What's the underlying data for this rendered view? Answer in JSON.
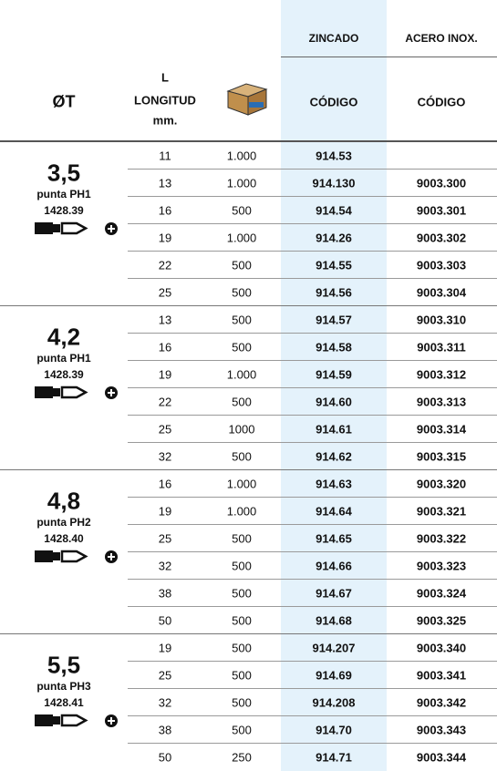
{
  "header": {
    "zincado": "ZINCADO",
    "acero": "ACERO INOX.",
    "diameter": "ØT",
    "length_l": "L",
    "length_word": "LONGITUD",
    "length_unit": "mm.",
    "code_zincado": "CÓDIGO",
    "code_acero": "CÓDIGO"
  },
  "groups": [
    {
      "size": "3,5",
      "tip": "punta PH1",
      "ref": "1428.39",
      "rows": [
        [
          "11",
          "1.000",
          "914.53",
          null
        ],
        [
          "13",
          "1.000",
          "914.130",
          "9003.300"
        ],
        [
          "16",
          "500",
          "914.54",
          "9003.301"
        ],
        [
          "19",
          "1.000",
          "914.26",
          "9003.302"
        ],
        [
          "22",
          "500",
          "914.55",
          "9003.303"
        ],
        [
          "25",
          "500",
          "914.56",
          "9003.304"
        ]
      ]
    },
    {
      "size": "4,2",
      "tip": "punta PH1",
      "ref": "1428.39",
      "rows": [
        [
          "13",
          "500",
          "914.57",
          "9003.310"
        ],
        [
          "16",
          "500",
          "914.58",
          "9003.311"
        ],
        [
          "19",
          "1.000",
          "914.59",
          "9003.312"
        ],
        [
          "22",
          "500",
          "914.60",
          "9003.313"
        ],
        [
          "25",
          "1000",
          "914.61",
          "9003.314"
        ],
        [
          "32",
          "500",
          "914.62",
          "9003.315"
        ]
      ]
    },
    {
      "size": "4,8",
      "tip": "punta PH2",
      "ref": "1428.40",
      "rows": [
        [
          "16",
          "1.000",
          "914.63",
          "9003.320"
        ],
        [
          "19",
          "1.000",
          "914.64",
          "9003.321"
        ],
        [
          "25",
          "500",
          "914.65",
          "9003.322"
        ],
        [
          "32",
          "500",
          "914.66",
          "9003.323"
        ],
        [
          "38",
          "500",
          "914.67",
          "9003.324"
        ],
        [
          "50",
          "500",
          "914.68",
          "9003.325"
        ]
      ]
    },
    {
      "size": "5,5",
      "tip": "punta PH3",
      "ref": "1428.41",
      "rows": [
        [
          "19",
          "500",
          "914.207",
          "9003.340"
        ],
        [
          "25",
          "500",
          "914.69",
          "9003.341"
        ],
        [
          "32",
          "500",
          "914.208",
          "9003.342"
        ],
        [
          "38",
          "500",
          "914.70",
          "9003.343"
        ],
        [
          "50",
          "250",
          "914.71",
          "9003.344"
        ]
      ]
    }
  ]
}
